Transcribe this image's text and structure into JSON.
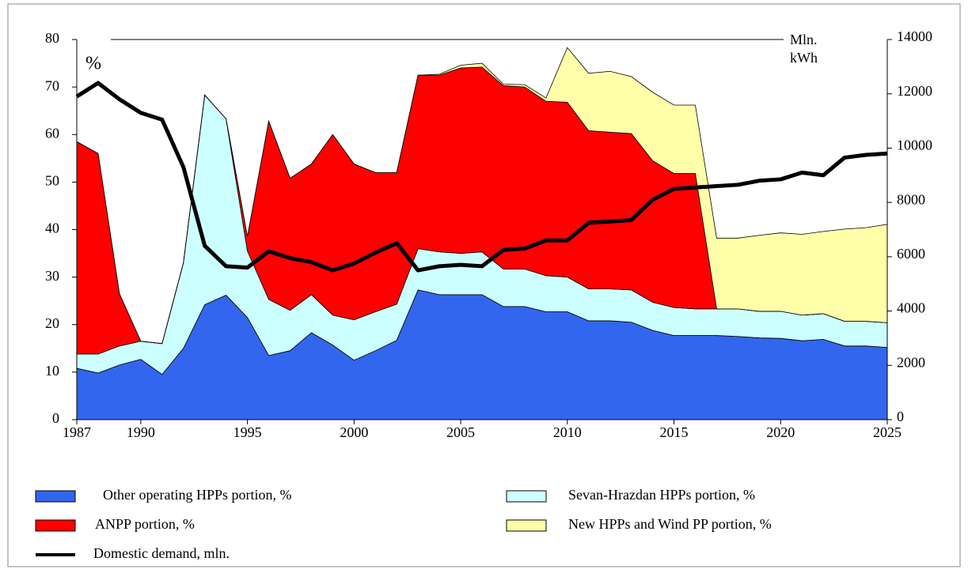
{
  "chart_data": {
    "type": "area",
    "x": [
      1987,
      1988,
      1989,
      1990,
      1991,
      1992,
      1993,
      1994,
      1995,
      1996,
      1997,
      1998,
      1999,
      2000,
      2001,
      2002,
      2003,
      2004,
      2005,
      2006,
      2007,
      2008,
      2009,
      2010,
      2011,
      2012,
      2013,
      2014,
      2015,
      2016,
      2017,
      2018,
      2019,
      2020,
      2021,
      2022,
      2023,
      2024,
      2025
    ],
    "xlim": [
      1987,
      2025
    ],
    "xticks": [
      1987,
      1990,
      1995,
      2000,
      2005,
      2010,
      2015,
      2020,
      2025
    ],
    "ylim": [
      0,
      80
    ],
    "yticks": [
      0,
      10,
      20,
      30,
      40,
      50,
      60,
      70,
      80
    ],
    "y2lim": [
      0,
      14000
    ],
    "y2ticks": [
      0,
      2000,
      4000,
      6000,
      8000,
      10000,
      12000,
      14000
    ],
    "annotations": [
      "%",
      "Mln.",
      "kWh"
    ],
    "series": [
      {
        "name": "Other operating HPPs portion, %",
        "color": "#3366ee",
        "stacked": true,
        "values": [
          10.8,
          9.8,
          11.5,
          12.7,
          9.5,
          15,
          24.2,
          26.2,
          21.5,
          13.5,
          14.5,
          18.3,
          15.7,
          12.5,
          14.5,
          16.7,
          27.3,
          26.3,
          26.3,
          26.3,
          23.8,
          23.8,
          22.7,
          22.7,
          20.8,
          20.8,
          20.5,
          18.8,
          17.7,
          17.7,
          17.7,
          17.5,
          17.2,
          17.1,
          16.6,
          16.9,
          15.5,
          15.5,
          15.2
        ]
      },
      {
        "name": "Sevan-Hrazdan HPPs portion, %",
        "color": "#ccffff",
        "stacked": true,
        "values": [
          3.0,
          4.0,
          4.0,
          3.8,
          6.5,
          18,
          44.1,
          37.1,
          14,
          11.8,
          8.5,
          8,
          6.3,
          8.5,
          8.2,
          7.6,
          8.7,
          9,
          8.7,
          9,
          7.9,
          7.9,
          7.6,
          7.3,
          6.7,
          6.7,
          6.8,
          5.9,
          5.9,
          5.6,
          5.6,
          5.8,
          5.6,
          5.7,
          5.4,
          5.4,
          5.2,
          5.2,
          5.2
        ]
      },
      {
        "name": "ANPP portion, %",
        "color": "#ff0000",
        "stacked": true,
        "values": [
          44.7,
          42.2,
          11,
          0,
          0,
          0,
          0,
          0,
          3,
          37.5,
          27.8,
          27.5,
          38,
          32.8,
          29.3,
          27.7,
          36.5,
          37.2,
          39,
          38.9,
          38.6,
          38.3,
          36.7,
          36.8,
          33.3,
          33,
          32.9,
          29.8,
          28.2,
          28.5,
          0,
          0,
          0,
          0,
          0,
          0,
          0,
          0,
          0
        ]
      },
      {
        "name": "New HPPs and Wind PP portion, %",
        "color": "#ffffaa",
        "stacked": true,
        "values": [
          0,
          0,
          0,
          0,
          0,
          0,
          0,
          0,
          0,
          0,
          0,
          0,
          0,
          0,
          0,
          0,
          0,
          0.2,
          0.6,
          0.8,
          0.3,
          0.5,
          0.7,
          11.5,
          12.1,
          12.8,
          12,
          14.4,
          14.4,
          14.4,
          14.9,
          14.9,
          16,
          16.5,
          17,
          17.3,
          19.4,
          19.7,
          20.7
        ]
      },
      {
        "name": "Domestic demand, mln.",
        "color": "#000000",
        "axis": "y2",
        "kind": "line",
        "values": [
          11900,
          12400,
          11800,
          11300,
          11050,
          9300,
          6400,
          5650,
          5600,
          6200,
          5950,
          5800,
          5500,
          5750,
          6150,
          6500,
          5500,
          5650,
          5700,
          5650,
          6250,
          6300,
          6600,
          6600,
          7250,
          7300,
          7350,
          8100,
          8500,
          8550,
          8600,
          8650,
          8800,
          8850,
          9100,
          9000,
          9650,
          9750,
          9800
        ]
      }
    ]
  }
}
